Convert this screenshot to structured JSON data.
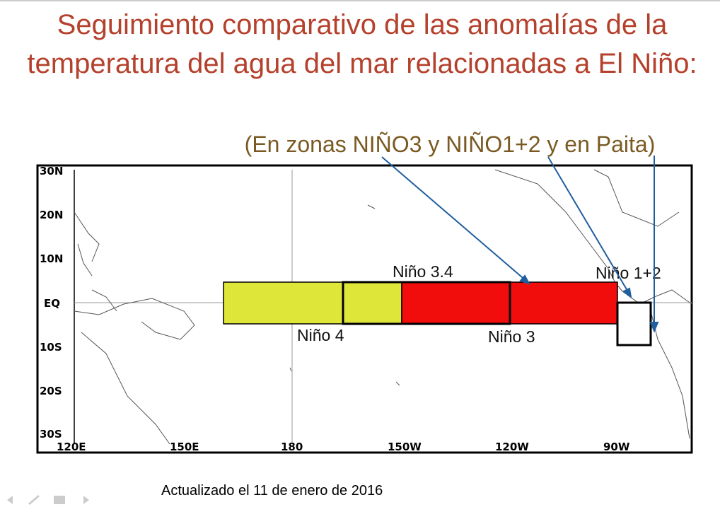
{
  "header": {
    "title_lines": [
      "Seguimiento comparativo de las anomalías de la",
      "temperatura del agua del mar relacionadas a El Niño:"
    ],
    "subtitle": "(En zonas NIÑO3 y NIÑO1+2 y en Paita)"
  },
  "map": {
    "lat_labels": [
      "30N",
      "20N",
      "10N",
      "EQ",
      "10S",
      "20S",
      "30S"
    ],
    "lon_labels": [
      "120E",
      "150E",
      "180",
      "150W",
      "120W",
      "90W"
    ],
    "regions": [
      "Niño 3.4",
      "Niño 4",
      "Niño 3",
      "Niño 1+2"
    ]
  },
  "footer": {
    "updated": "Actualizado el 11 de enero de 2016"
  }
}
